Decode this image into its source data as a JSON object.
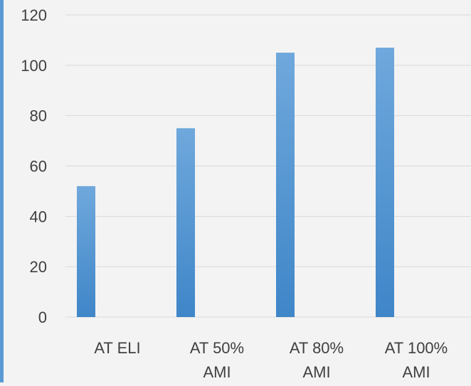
{
  "colors": {
    "background": "#f3f3f3",
    "bar_top": "#6fa8dc",
    "bar_bottom": "#3f86c8",
    "gridline": "#d9d9d9",
    "text": "#404040",
    "left_border": "#5b9bd5"
  },
  "chart_data": {
    "type": "bar",
    "categories": [
      "AT ELI",
      "AT 50% AMI",
      "AT 80% AMI",
      "AT 100% AMI"
    ],
    "category_lines": [
      [
        "AT ELI"
      ],
      [
        "AT 50%",
        "AMI"
      ],
      [
        "AT 80%",
        "AMI"
      ],
      [
        "AT 100%",
        "AMI"
      ]
    ],
    "values": [
      52,
      75,
      105,
      107
    ],
    "ylim": [
      0,
      120
    ],
    "yticks": [
      0,
      20,
      40,
      60,
      80,
      100,
      120
    ],
    "title": "",
    "xlabel": "",
    "ylabel": "",
    "grid": true,
    "legend": "none"
  }
}
